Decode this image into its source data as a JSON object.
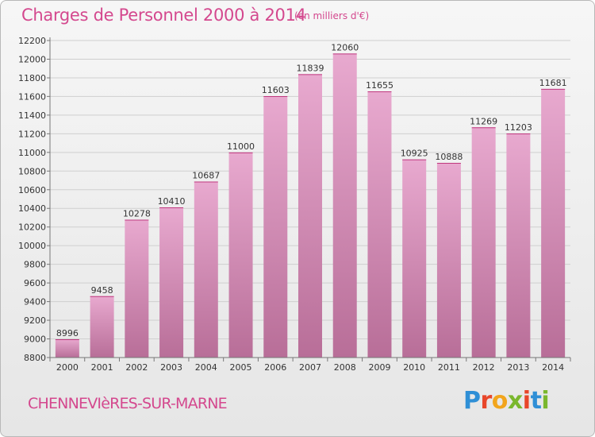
{
  "header": {
    "title": "Charges de Personnel 2000 à 2014",
    "subtitle": "(en milliers d'€)"
  },
  "footer": {
    "city": "CHENNEVIèRES-SUR-MARNE",
    "logo": "Proxiti"
  },
  "colors": {
    "accent": "#d4488e",
    "bar_top": "#e8a9cf",
    "bar_bottom": "#b86e98",
    "logo_letters": [
      "#2f8fd6",
      "#e8462a",
      "#f2a51c",
      "#7ab72d",
      "#e8462a",
      "#2f8fd6",
      "#7ab72d"
    ]
  },
  "chart_data": {
    "type": "bar",
    "title": "Charges de Personnel 2000 à 2014",
    "subtitle": "(en milliers d'€)",
    "categories": [
      "2000",
      "2001",
      "2002",
      "2003",
      "2004",
      "2005",
      "2006",
      "2007",
      "2008",
      "2009",
      "2010",
      "2011",
      "2012",
      "2013",
      "2014"
    ],
    "values": [
      8996,
      9458,
      10278,
      10410,
      10687,
      11000,
      11603,
      11839,
      12060,
      11655,
      10925,
      10888,
      11269,
      11203,
      11681
    ],
    "ylim": [
      8800,
      12200
    ],
    "yticks": [
      8800,
      9000,
      9200,
      9400,
      9600,
      9800,
      10000,
      10200,
      10400,
      10600,
      10800,
      11000,
      11200,
      11400,
      11600,
      11800,
      12000,
      12200
    ],
    "grid": true,
    "xlabel": "",
    "ylabel": ""
  }
}
